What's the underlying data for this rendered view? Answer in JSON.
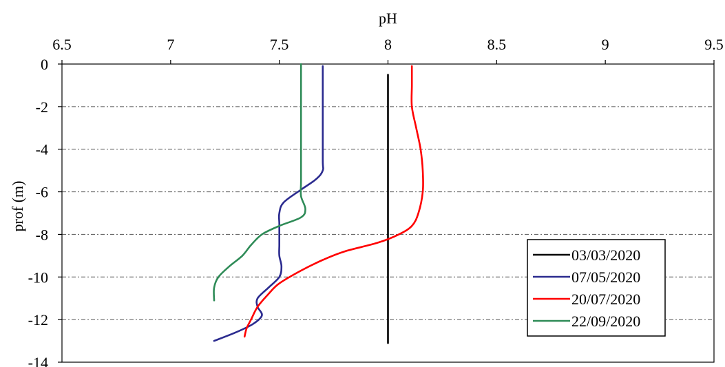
{
  "chart_data": {
    "type": "line",
    "xlabel": "pH",
    "ylabel": "prof (m)",
    "xlim": [
      6.5,
      9.5
    ],
    "ylim": [
      -14,
      0
    ],
    "x_ticks": [
      "6.5",
      "7",
      "7.5",
      "8",
      "8.5",
      "9",
      "9.5"
    ],
    "y_ticks": [
      "0",
      "-2",
      "-4",
      "-6",
      "-8",
      "-10",
      "-12",
      "-14"
    ],
    "x_axis_position": "top",
    "grid": "horizontal-dashdot",
    "legend_position": "bottom-right",
    "series": [
      {
        "name": "03/03/2020",
        "color": "#000000",
        "points": [
          [
            8.0,
            -0.5
          ],
          [
            8.0,
            -2
          ],
          [
            8.0,
            -4
          ],
          [
            8.0,
            -6
          ],
          [
            8.0,
            -8
          ],
          [
            8.0,
            -10
          ],
          [
            8.0,
            -12
          ],
          [
            8.0,
            -13.1
          ]
        ]
      },
      {
        "name": "07/05/2020",
        "color": "#2B2B8F",
        "points": [
          [
            7.7,
            -0.1
          ],
          [
            7.7,
            -2
          ],
          [
            7.7,
            -4.5
          ],
          [
            7.7,
            -5.0
          ],
          [
            7.67,
            -5.4
          ],
          [
            7.6,
            -5.9
          ],
          [
            7.52,
            -6.5
          ],
          [
            7.5,
            -7.0
          ],
          [
            7.5,
            -7.5
          ],
          [
            7.5,
            -8
          ],
          [
            7.5,
            -8.5
          ],
          [
            7.5,
            -9
          ],
          [
            7.51,
            -9.5
          ],
          [
            7.5,
            -10
          ],
          [
            7.45,
            -10.5
          ],
          [
            7.4,
            -11
          ],
          [
            7.4,
            -11.4
          ],
          [
            7.42,
            -11.8
          ],
          [
            7.38,
            -12.2
          ],
          [
            7.3,
            -12.6
          ],
          [
            7.2,
            -13.0
          ]
        ]
      },
      {
        "name": "20/07/2020",
        "color": "#FF0000",
        "points": [
          [
            8.11,
            -0.1
          ],
          [
            8.11,
            -1
          ],
          [
            8.11,
            -2
          ],
          [
            8.13,
            -3
          ],
          [
            8.15,
            -4
          ],
          [
            8.16,
            -5
          ],
          [
            8.16,
            -6
          ],
          [
            8.14,
            -7
          ],
          [
            8.11,
            -7.6
          ],
          [
            8.05,
            -8.0
          ],
          [
            7.95,
            -8.4
          ],
          [
            7.8,
            -8.8
          ],
          [
            7.7,
            -9.2
          ],
          [
            7.6,
            -9.7
          ],
          [
            7.5,
            -10.3
          ],
          [
            7.45,
            -10.8
          ],
          [
            7.4,
            -11.4
          ],
          [
            7.37,
            -12.0
          ],
          [
            7.35,
            -12.4
          ],
          [
            7.34,
            -12.8
          ]
        ]
      },
      {
        "name": "22/09/2020",
        "color": "#2E8B57",
        "points": [
          [
            7.6,
            0.0
          ],
          [
            7.6,
            -2
          ],
          [
            7.6,
            -4
          ],
          [
            7.6,
            -5.5
          ],
          [
            7.6,
            -6.2
          ],
          [
            7.62,
            -6.8
          ],
          [
            7.6,
            -7.2
          ],
          [
            7.5,
            -7.6
          ],
          [
            7.42,
            -8.0
          ],
          [
            7.37,
            -8.5
          ],
          [
            7.33,
            -9.0
          ],
          [
            7.27,
            -9.5
          ],
          [
            7.22,
            -10.0
          ],
          [
            7.2,
            -10.5
          ],
          [
            7.2,
            -11.1
          ]
        ]
      }
    ]
  }
}
